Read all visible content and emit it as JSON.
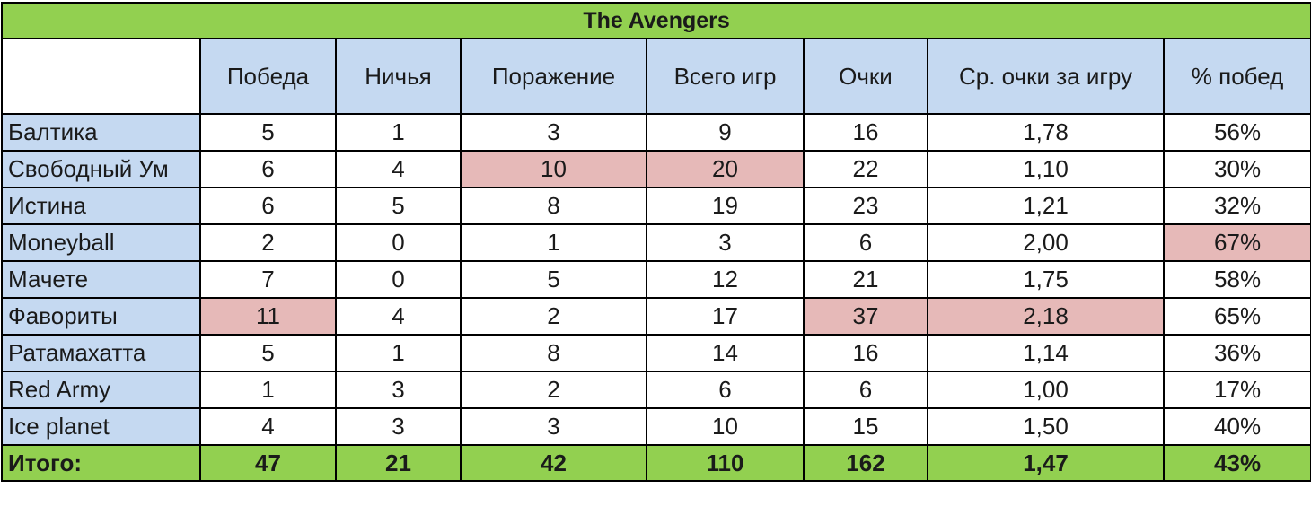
{
  "title": "The Avengers",
  "columns": [
    "Победа",
    "Ничья",
    "Поражение",
    "Всего игр",
    "Очки",
    "Ср. очки за игру",
    "% побед"
  ],
  "rows": [
    {
      "name": "Балтика",
      "cells": [
        "5",
        "1",
        "3",
        "9",
        "16",
        "1,78",
        "56%"
      ],
      "highlight": []
    },
    {
      "name": "Свободный Ум",
      "cells": [
        "6",
        "4",
        "10",
        "20",
        "22",
        "1,10",
        "30%"
      ],
      "highlight": [
        2,
        3
      ]
    },
    {
      "name": "Истина",
      "cells": [
        "6",
        "5",
        "8",
        "19",
        "23",
        "1,21",
        "32%"
      ],
      "highlight": []
    },
    {
      "name": "Moneyball",
      "cells": [
        "2",
        "0",
        "1",
        "3",
        "6",
        "2,00",
        "67%"
      ],
      "highlight": [
        6
      ]
    },
    {
      "name": "Мачете",
      "cells": [
        "7",
        "0",
        "5",
        "12",
        "21",
        "1,75",
        "58%"
      ],
      "highlight": []
    },
    {
      "name": "Фавориты",
      "cells": [
        "11",
        "4",
        "2",
        "17",
        "37",
        "2,18",
        "65%"
      ],
      "highlight": [
        0,
        4,
        5
      ]
    },
    {
      "name": "Ратамахатта",
      "cells": [
        "5",
        "1",
        "8",
        "14",
        "16",
        "1,14",
        "36%"
      ],
      "highlight": []
    },
    {
      "name": "Red Army",
      "cells": [
        "1",
        "3",
        "2",
        "6",
        "6",
        "1,00",
        "17%"
      ],
      "highlight": []
    },
    {
      "name": "Ice planet",
      "cells": [
        "4",
        "3",
        "3",
        "10",
        "15",
        "1,50",
        "40%"
      ],
      "highlight": []
    }
  ],
  "total": {
    "label": "Итого:",
    "cells": [
      "47",
      "21",
      "42",
      "110",
      "162",
      "1,47",
      "43%"
    ]
  },
  "colors": {
    "title_bg": "#92d050",
    "header_bg": "#c5d9f1",
    "highlight_bg": "#e6b9b8",
    "border": "#000000"
  }
}
